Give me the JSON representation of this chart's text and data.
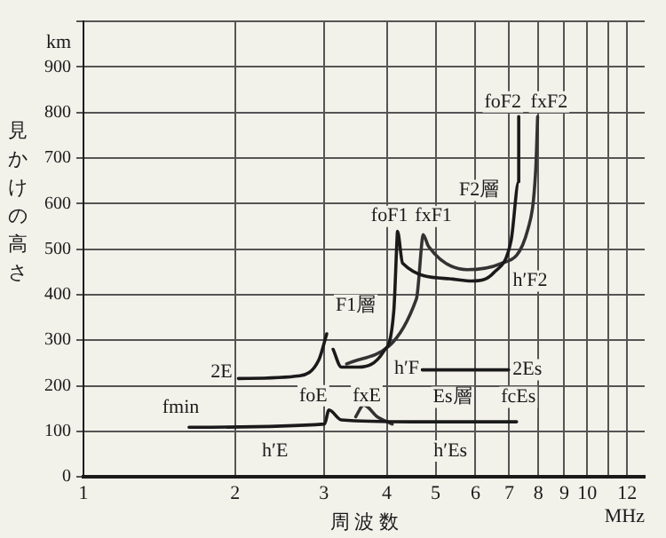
{
  "chart_data": {
    "type": "line",
    "xlabel": "周 波 数",
    "ylabel": "見かけの高さ",
    "log": "x",
    "grid": true,
    "legend": false,
    "marker": "none",
    "line_style": "solid",
    "xlim": [
      1,
      13
    ],
    "xticks": [
      1,
      2,
      3,
      4,
      5,
      6,
      7,
      8,
      9,
      10,
      {
        "value": 11,
        "label": null
      },
      12
    ],
    "ylim": [
      0,
      1000
    ],
    "yticks": [
      0,
      100,
      200,
      300,
      400,
      500,
      600,
      700,
      800,
      900,
      {
        "value": 1000,
        "label": null
      }
    ],
    "series": [
      {
        "color": "#1a1a1a",
        "x": [
          2.03,
          2.69,
          2.93,
          3.04
        ],
        "values": [
          216,
          222,
          256,
          314
        ]
      },
      {
        "color": "#1a1a1a",
        "x": [
          3.13,
          3.25,
          3.51,
          3.94,
          4.13,
          4.19,
          4.2,
          4.3,
          5.33,
          5.9,
          6.52,
          7.06,
          7.31,
          7.31
        ],
        "values": [
          280,
          241,
          241,
          275,
          364,
          519,
          539,
          469,
          435,
          430,
          448,
          519,
          648,
          791
        ]
      },
      {
        "color": "#333333",
        "x": [
          3.33,
          4.58,
          4.7,
          4.72,
          4.84,
          5.77,
          6.72,
          7.63,
          7.9,
          7.97
        ],
        "values": [
          248,
          391,
          519,
          532,
          506,
          455,
          468,
          545,
          674,
          791
        ]
      },
      {
        "color": "#1a1a1a",
        "x": [
          1.62,
          3.01,
          3.07,
          3.25,
          4.5,
          7.24
        ],
        "values": [
          109,
          116,
          147,
          125,
          121,
          121
        ]
      },
      {
        "color": "#333333",
        "x": [
          3.47,
          3.6,
          3.83,
          4.1
        ],
        "values": [
          132,
          158,
          132,
          116
        ]
      },
      {
        "color": "#1a1a1a",
        "x": [
          4.7,
          6.98
        ],
        "values": [
          235,
          235
        ]
      }
    ],
    "annotations": [
      "km",
      "MHz",
      {
        "text": "2E",
        "x": 1.88,
        "y": 229
      },
      {
        "text": "fmin",
        "x": 1.56,
        "y": 151
      },
      {
        "text": "foE",
        "x": 2.86,
        "y": 178
      },
      {
        "text": "fxE",
        "x": 3.65,
        "y": 178
      },
      {
        "text": "Es層",
        "x": 5.4,
        "y": 175
      },
      {
        "text": "fcEs",
        "x": 7.3,
        "y": 175
      },
      {
        "text": "F1層",
        "x": 3.47,
        "y": 377
      },
      {
        "text": "h′F",
        "x": 4.38,
        "y": 238
      },
      {
        "text": "2Es",
        "x": 7.6,
        "y": 235
      },
      {
        "text": "h′E",
        "x": 2.4,
        "y": 57
      },
      {
        "text": "h′Es",
        "x": 5.35,
        "y": 57
      },
      {
        "text": "h′F2",
        "x": 7.7,
        "y": 430
      },
      {
        "text": "F2層",
        "x": 6.1,
        "y": 629
      },
      {
        "text": "foF1",
        "x": 4.05,
        "y": 572
      },
      {
        "text": "fxF1",
        "x": 4.95,
        "y": 572
      },
      {
        "text": "foF2",
        "x": 6.8,
        "y": 823
      },
      {
        "text": "fxF2",
        "x": 8.4,
        "y": 823
      }
    ]
  }
}
